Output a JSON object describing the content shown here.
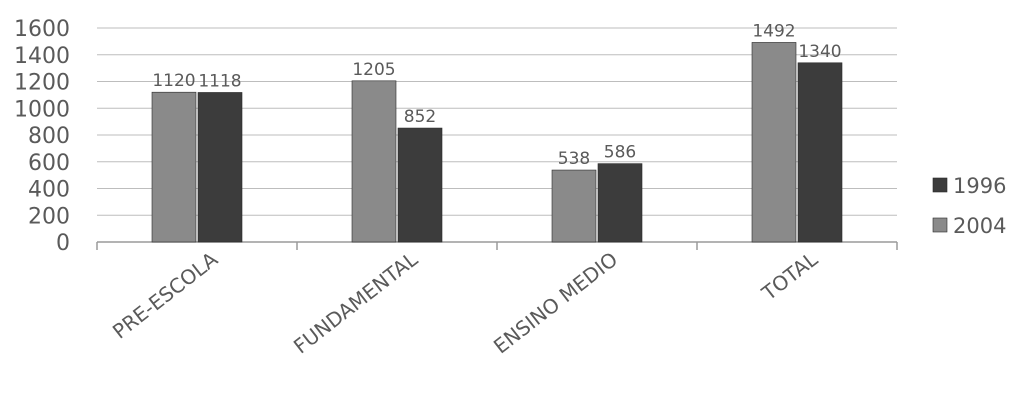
{
  "chart_data": {
    "type": "bar",
    "categories": [
      "PRE-ESCOLA",
      "FUNDAMENTAL",
      "ENSINO MEDIO",
      "TOTAL"
    ],
    "series": [
      {
        "name": "2004",
        "values": [
          1120,
          1205,
          538,
          1492
        ],
        "color": "#8a8a8a"
      },
      {
        "name": "1996",
        "values": [
          1118,
          852,
          586,
          1340
        ],
        "color": "#3c3c3c"
      }
    ],
    "data_labels": [
      [
        "1120",
        "1205",
        "538",
        "1492"
      ],
      [
        "1118",
        "852",
        "586",
        "1340"
      ]
    ],
    "ylim": [
      0,
      1600
    ],
    "yticks": [
      0,
      200,
      400,
      600,
      800,
      1000,
      1200,
      1400,
      1600
    ],
    "ytick_labels": [
      "0",
      "200",
      "400",
      "600",
      "800",
      "1000",
      "1200",
      "1400",
      "1600"
    ],
    "grid": true,
    "legend": {
      "position": "right",
      "order": [
        "1996",
        "2004"
      ]
    },
    "title": "",
    "xlabel": "",
    "ylabel": ""
  }
}
